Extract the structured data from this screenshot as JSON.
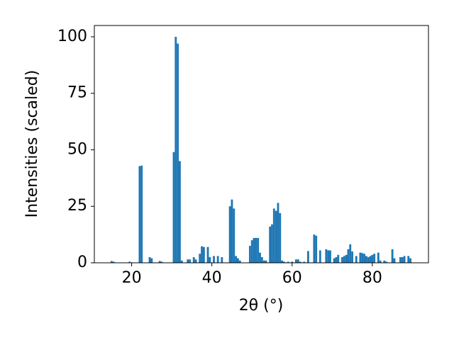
{
  "chart_data": {
    "type": "bar",
    "xlabel": "2θ (°)",
    "ylabel": "Intensities (scaled)",
    "x": [
      15,
      15.5,
      19.5,
      22,
      22.5,
      24.5,
      25,
      27,
      27.5,
      30.5,
      31,
      31.5,
      32,
      32.5,
      34,
      34.5,
      35.5,
      36,
      37,
      37.5,
      38,
      39,
      39.5,
      40.5,
      41.5,
      42.5,
      44.5,
      45,
      45.5,
      46,
      46.5,
      47,
      49.5,
      50,
      50.5,
      51,
      51.5,
      52,
      52.5,
      53,
      53.5,
      54.5,
      55,
      55.5,
      56,
      56.5,
      57,
      57.5,
      58,
      59,
      60,
      61,
      61.5,
      62,
      63,
      64,
      65.5,
      66,
      67,
      68.5,
      69,
      69.5,
      70.5,
      71,
      71.5,
      72.5,
      73,
      73.5,
      74,
      74.5,
      75,
      76,
      77,
      77.5,
      78,
      78.5,
      79,
      79.5,
      80,
      80.5,
      81.5,
      82,
      83,
      83.5,
      85,
      85.5,
      87,
      87.5,
      88,
      89,
      89.5
    ],
    "values": [
      0.8,
      0.5,
      0.5,
      42.8,
      43,
      2.5,
      2,
      0.8,
      0.5,
      49,
      100,
      97,
      45,
      1,
      1.5,
      1.5,
      2.5,
      1.5,
      4,
      7.3,
      7,
      7,
      2.5,
      3,
      3,
      2.5,
      25,
      28,
      24,
      3,
      2,
      1,
      7.5,
      10,
      11,
      11,
      11,
      4.5,
      2.5,
      1,
      1,
      16,
      17,
      24,
      23,
      26.5,
      22,
      1,
      0.5,
      0.5,
      0.5,
      1.5,
      1.5,
      0.5,
      0.5,
      5.2,
      12.5,
      12,
      5.5,
      6,
      5.5,
      5.5,
      2,
      2.5,
      3.5,
      2.5,
      3,
      3.5,
      6,
      8.2,
      5,
      3,
      4.5,
      4.3,
      4,
      3,
      2.5,
      3,
      3.5,
      4,
      4.5,
      1,
      1,
      0.5,
      6,
      2,
      2.5,
      2.5,
      3,
      3,
      2
    ],
    "color": "#1f77b4",
    "xlim": [
      10.7,
      94.0
    ],
    "xticks": [
      20,
      40,
      60,
      80
    ],
    "ylim": [
      0,
      105
    ],
    "yticks": [
      0,
      25,
      50,
      75,
      100
    ]
  }
}
